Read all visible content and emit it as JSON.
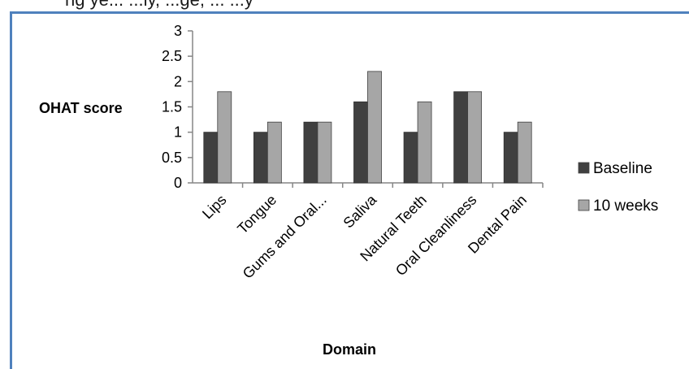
{
  "header": {
    "caption_fragment": "ng ye... ...ly, ...ge, ... ...y"
  },
  "chart_data": {
    "type": "bar",
    "categories": [
      "Lips",
      "Tongue",
      "Gums and Oral...",
      "Saliva",
      "Natural Teeth",
      "Oral Cleanliness",
      "Dental Pain"
    ],
    "series": [
      {
        "name": "Baseline",
        "values": [
          1,
          1,
          1.2,
          1.6,
          1,
          1.8,
          1
        ],
        "color": "#404040"
      },
      {
        "name": "10 weeks",
        "values": [
          1.8,
          1.2,
          1.2,
          2.2,
          1.6,
          1.8,
          1.2
        ],
        "color": "#a6a6a6"
      }
    ],
    "title": "",
    "xlabel": "Domain",
    "ylabel": "OHAT score",
    "ylim": [
      0,
      3
    ],
    "yticks": [
      "0",
      "0.5",
      "1",
      "1.5",
      "2",
      "2.5",
      "3"
    ],
    "grid": false,
    "legend_position": "right"
  }
}
